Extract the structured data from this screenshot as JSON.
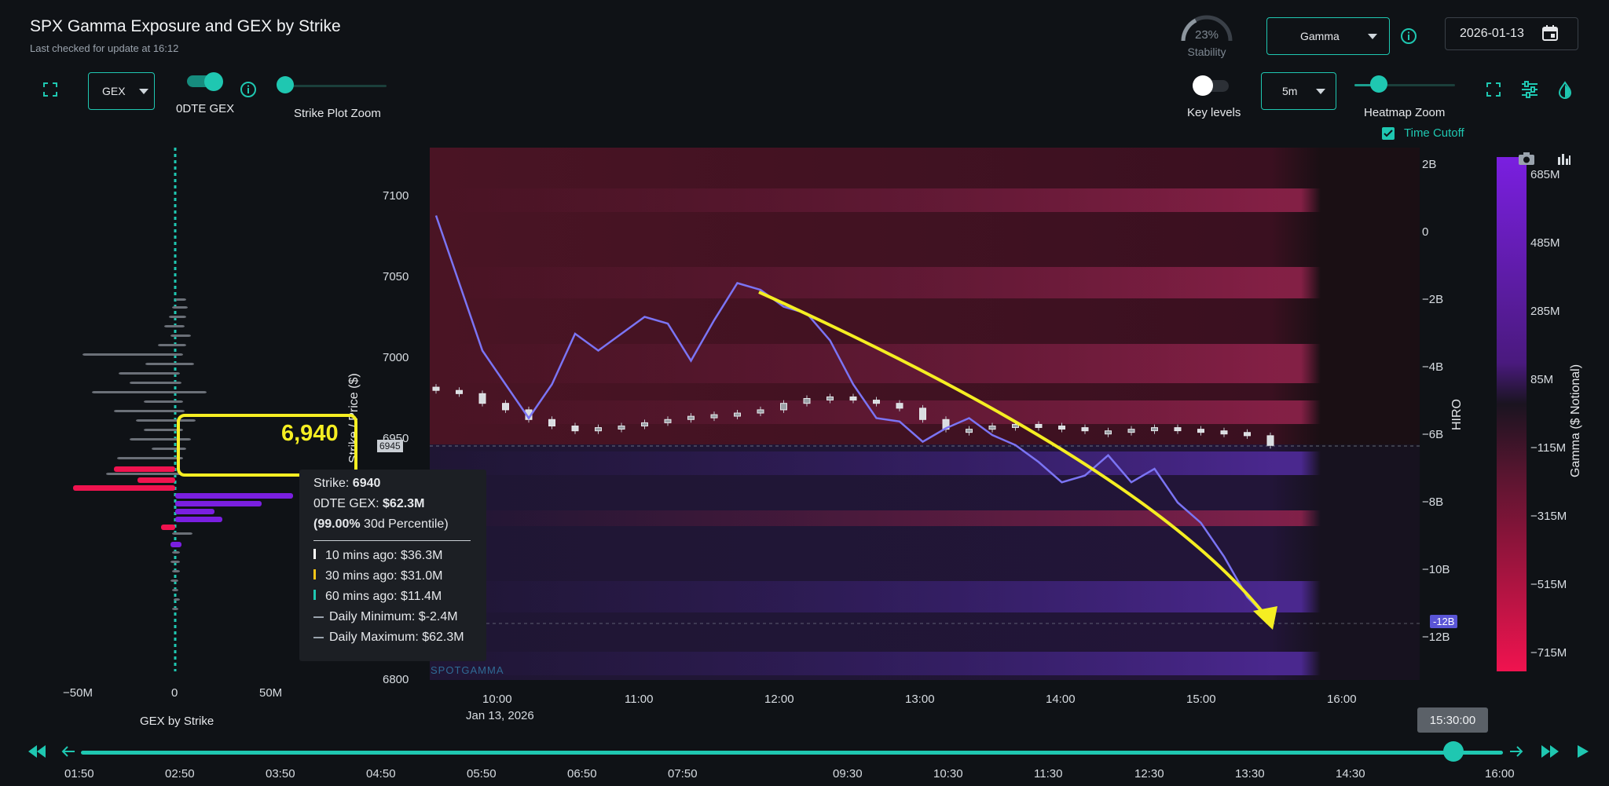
{
  "header": {
    "title": "SPX Gamma Exposure and GEX by Strike",
    "subtitle": "Last checked for update at 16:12"
  },
  "stability": {
    "value": "23%",
    "label": "Stability"
  },
  "mode_select": {
    "value": "Gamma"
  },
  "date_field": {
    "value": "2026-01-13"
  },
  "toolbar_left": {
    "gex_select": "GEX",
    "odte_label": "0DTE GEX",
    "strike_zoom_label": "Strike Plot Zoom"
  },
  "toolbar_right": {
    "key_levels_label": "Key levels",
    "interval_select": "5m",
    "heatmap_zoom_label": "Heatmap Zoom",
    "time_cutoff_label": "Time Cutoff"
  },
  "strike_plot": {
    "x_ticks": [
      "−50M",
      "0",
      "50M"
    ],
    "x_label": "GEX by Strike",
    "highlight_label": "6,940"
  },
  "tooltip": {
    "strike_label": "Strike: ",
    "strike_value": "6940",
    "odte_label": "0DTE GEX: ",
    "odte_value": "$62.3M",
    "percentile_value": "(99.00%",
    "percentile_label": " 30d Percentile)",
    "ago10": "10 mins ago: $36.3M",
    "ago30": "30 mins ago: $31.0M",
    "ago60": "60 mins ago: $11.4M",
    "daily_min": "Daily Minimum: $-2.4M",
    "daily_max": "Daily Maximum: $62.3M"
  },
  "main_chart": {
    "y_label": "Strike / Price ($)",
    "y_ticks": [
      "7100",
      "7050",
      "7000",
      "6950",
      "6800"
    ],
    "x_ticks": [
      "10:00",
      "11:00",
      "12:00",
      "13:00",
      "14:00",
      "15:00",
      "16:00"
    ],
    "date_label": "Jan 13, 2026",
    "price_marker": "6945",
    "hiro_label": "HIRO",
    "hiro_ticks": [
      "2B",
      "0",
      "−2B",
      "−4B",
      "−6B",
      "−8B",
      "−10B",
      "−12B"
    ],
    "hiro_marker": "-12B",
    "watermark": "SPOTGAMMA"
  },
  "color_scale": {
    "label": "Gamma ($ Notional)",
    "ticks": [
      "685M",
      "485M",
      "285M",
      "85M",
      "−115M",
      "−315M",
      "−515M",
      "−715M"
    ]
  },
  "timeline": {
    "labels": [
      "01:50",
      "02:50",
      "03:50",
      "04:50",
      "05:50",
      "06:50",
      "07:50",
      "09:30",
      "10:30",
      "11:30",
      "12:30",
      "13:30",
      "14:30",
      "16:00"
    ],
    "current": "15:30:00"
  },
  "chart_data": {
    "type": "line",
    "x": [
      "09:30",
      "09:40",
      "09:50",
      "10:00",
      "10:10",
      "10:20",
      "10:30",
      "10:40",
      "10:50",
      "11:00",
      "11:10",
      "11:20",
      "11:30",
      "11:40",
      "11:50",
      "12:00",
      "12:10",
      "12:20",
      "12:30",
      "12:40",
      "12:50",
      "13:00",
      "13:10",
      "13:20",
      "13:30",
      "13:40",
      "13:50",
      "14:00",
      "14:10",
      "14:20",
      "14:30",
      "14:40",
      "14:50",
      "15:00",
      "15:10",
      "15:20",
      "15:30"
    ],
    "series": [
      {
        "values": [
          6980,
          6978,
          6972,
          6968,
          6962,
          6958,
          6955,
          6957,
          6958,
          6960,
          6962,
          6964,
          6965,
          6966,
          6968,
          6972,
          6975,
          6976,
          6974,
          6972,
          6969,
          6962,
          6956,
          6956,
          6958,
          6959,
          6958,
          6957,
          6955,
          6955,
          6956,
          6957,
          6956,
          6955,
          6954,
          6952,
          6946
        ]
      },
      {
        "values": [
          0.5,
          -1.5,
          -3.5,
          -4.5,
          -5.5,
          -4.5,
          -3,
          -3.5,
          -3,
          -2.5,
          -2.7,
          -3.8,
          -2.6,
          -1.5,
          -1.7,
          -2.2,
          -2.4,
          -3.2,
          -4.5,
          -5.5,
          -5.6,
          -6.2,
          -5.8,
          -5.5,
          -6.0,
          -6.3,
          -6.8,
          -7.4,
          -7.2,
          -6.6,
          -7.4,
          -7.0,
          -8.0,
          -8.6,
          -9.6,
          -10.8,
          -11.5
        ]
      }
    ],
    "y_ticks_left": [
      7100,
      7050,
      7000,
      6950,
      6800
    ],
    "y_ticks_right": [
      "2B",
      "0",
      "−2B",
      "−4B",
      "−6B",
      "−8B",
      "−10B",
      "−12B"
    ]
  },
  "colors": {
    "accent": "#1fc7b1",
    "annotation": "#f5ee22",
    "hiro_line": "#7b74f4",
    "negative": "#f0134f",
    "positive": "#7a1fe0"
  }
}
